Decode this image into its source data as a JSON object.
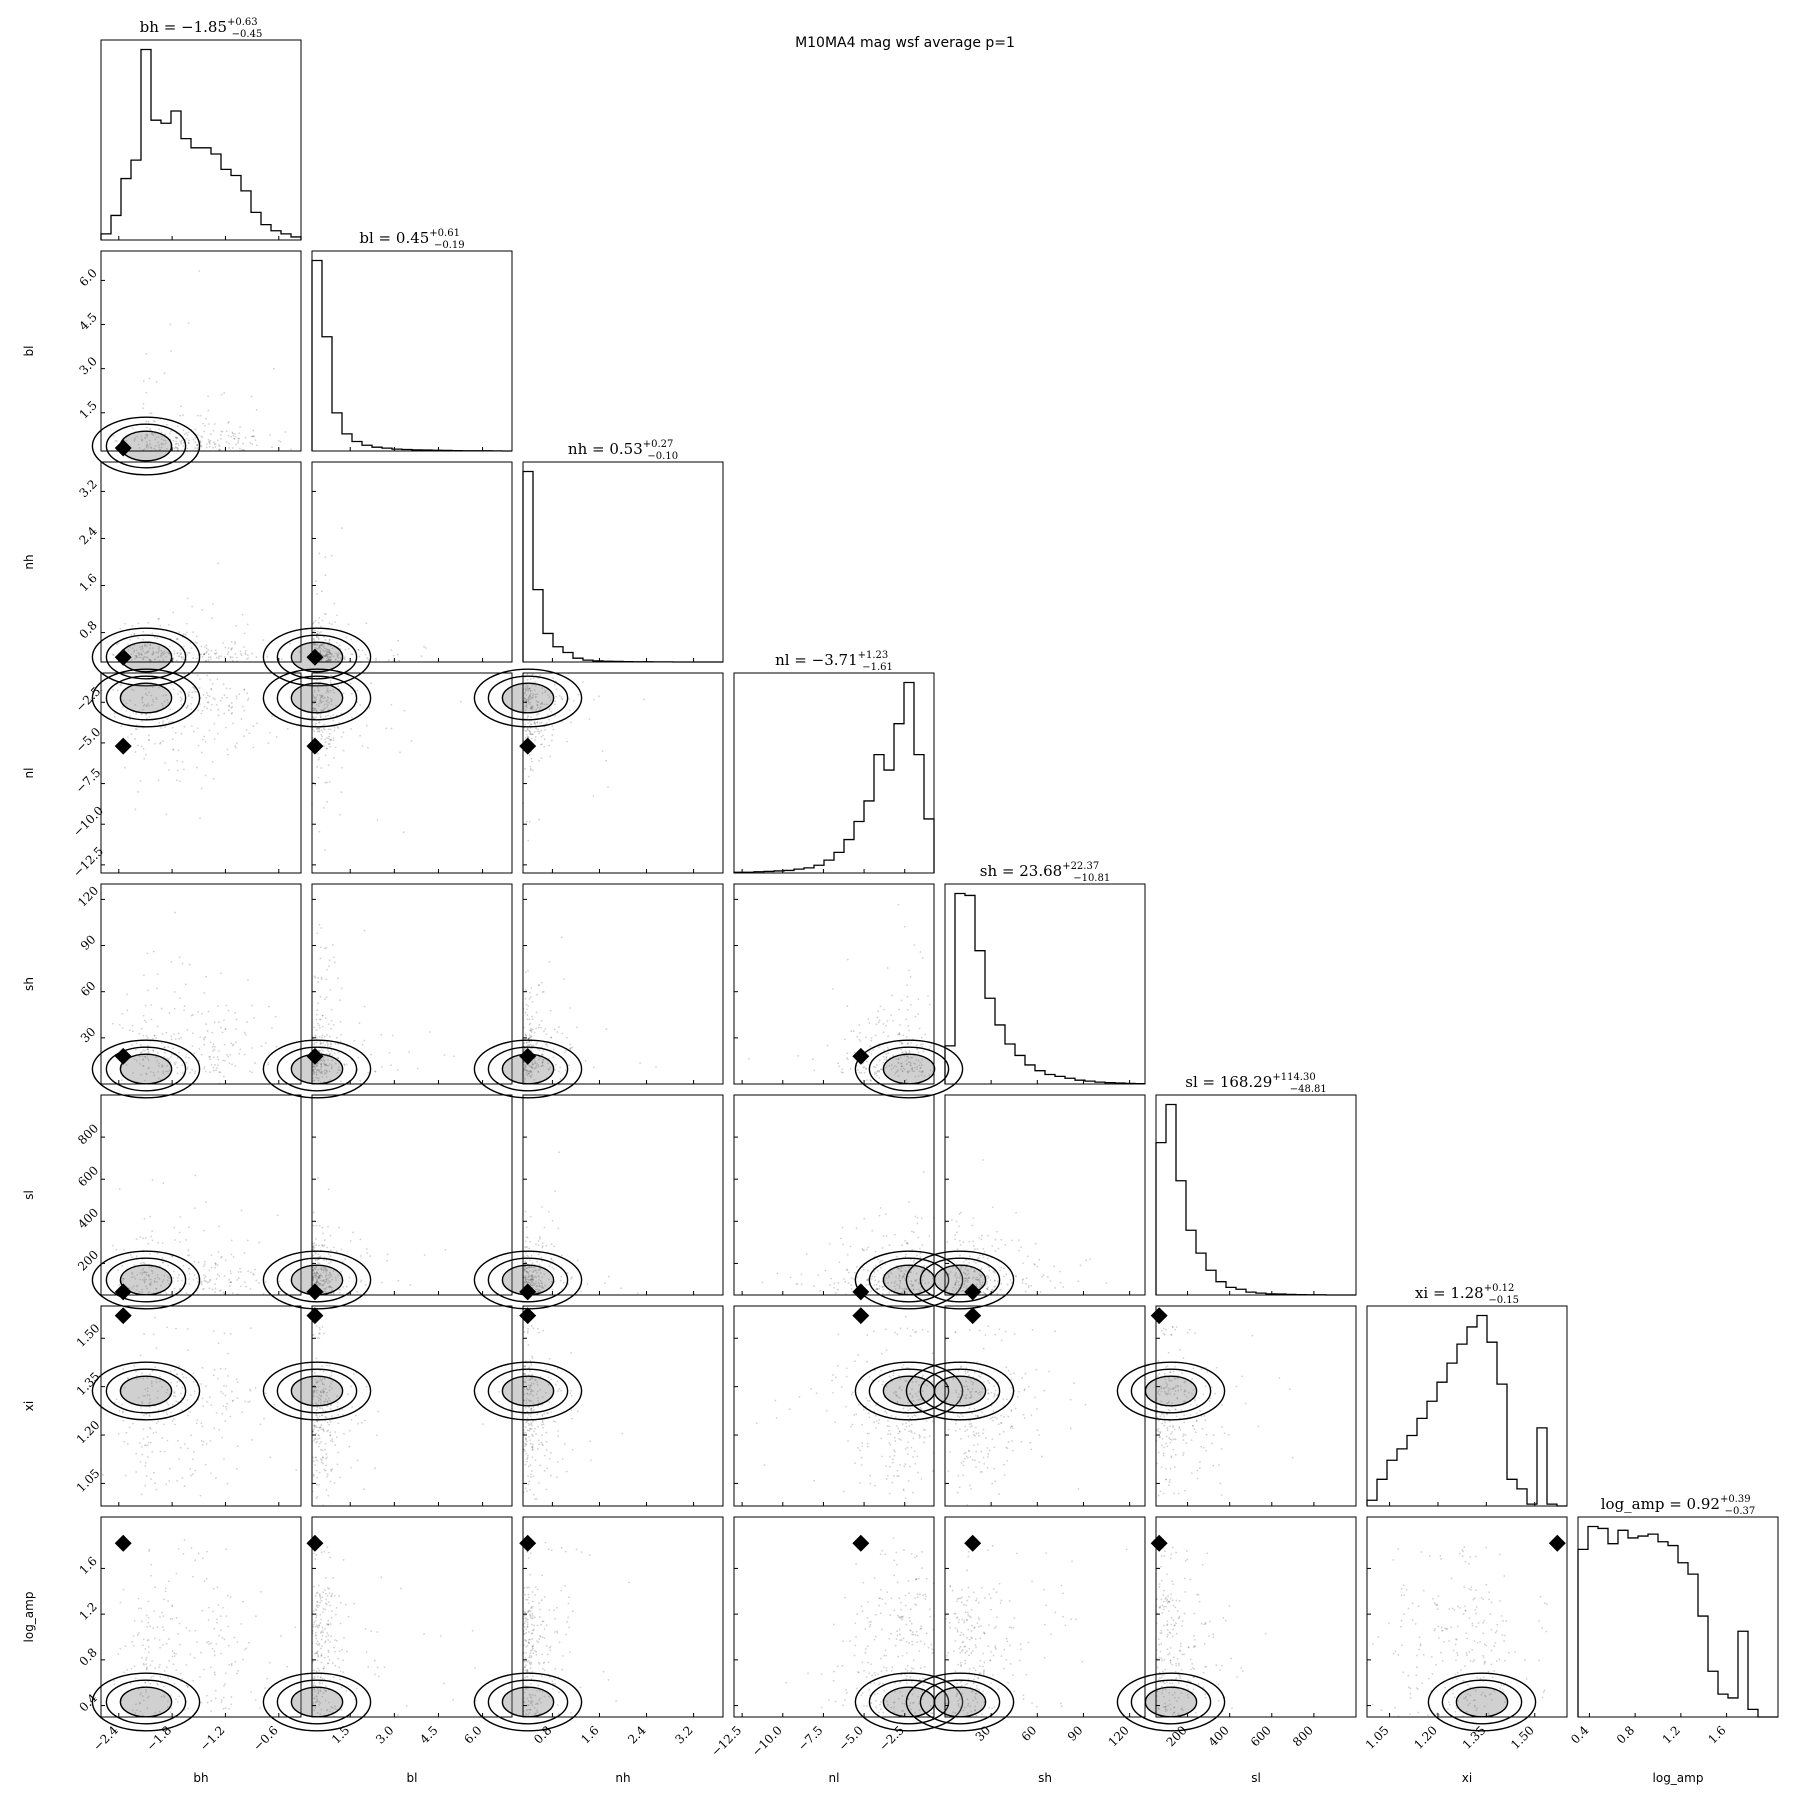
{
  "chart_data": {
    "type": "corner",
    "title": "M10MA4 mag wsf average p=1",
    "variables": [
      {
        "key": "bh",
        "label": "bh",
        "title": {
          "name": "bh",
          "value": "−1.85",
          "plus": "+0.63",
          "minus": "−0.45"
        },
        "range": [
          -2.6,
          -0.35
        ],
        "ticks": [
          -2.4,
          -1.8,
          -1.2,
          -0.6
        ],
        "tick_labels": [
          "−2.4",
          "−1.8",
          "−1.2",
          "−0.6"
        ],
        "hist": [
          2,
          8,
          20,
          26,
          62,
          39,
          38,
          42,
          33,
          30,
          30,
          28,
          23,
          21,
          16,
          9,
          5,
          3,
          2,
          1
        ]
      },
      {
        "key": "bl",
        "label": "bl",
        "title": {
          "name": "bl",
          "value": "0.45",
          "plus": "+0.61",
          "minus": "−0.19"
        },
        "range": [
          0.2,
          7.0
        ],
        "ticks": [
          1.5,
          3.0,
          4.5,
          6.0
        ],
        "tick_labels": [
          "1.5",
          "3.0",
          "4.5",
          "6.0"
        ],
        "hist": [
          100,
          60,
          20,
          9,
          5,
          3,
          2,
          1.5,
          1,
          0.8,
          0.6,
          0.5,
          0.4,
          0.3,
          0.2,
          0.15,
          0.1,
          0.1,
          0.05,
          0
        ]
      },
      {
        "key": "nh",
        "label": "nh",
        "title": {
          "name": "nh",
          "value": "0.53",
          "plus": "+0.27",
          "minus": "−0.10"
        },
        "range": [
          0.3,
          3.7
        ],
        "ticks": [
          0.8,
          1.6,
          2.4,
          3.2
        ],
        "tick_labels": [
          "0.8",
          "1.6",
          "2.4",
          "3.2"
        ],
        "hist": [
          100,
          38,
          15,
          8,
          5,
          2,
          1,
          0.6,
          0.4,
          0.3,
          0.2,
          0.1,
          0.1,
          0.05,
          0.05,
          0,
          0,
          0,
          0,
          0
        ]
      },
      {
        "key": "nl",
        "label": "nl",
        "title": {
          "name": "nl",
          "value": "−3.71",
          "plus": "+1.23",
          "minus": "−1.61"
        },
        "range": [
          -13.0,
          -0.7
        ],
        "ticks": [
          -12.5,
          -10.0,
          -7.5,
          -5.0,
          -2.5
        ],
        "tick_labels": [
          "−12.5",
          "−10.0",
          "−7.5",
          "−5.0",
          "−2.5"
        ],
        "hist": [
          0.3,
          0.3,
          0.5,
          0.6,
          0.8,
          1,
          1.5,
          2,
          3,
          5,
          8,
          13,
          20,
          28,
          46,
          40,
          58,
          74,
          46,
          21
        ]
      },
      {
        "key": "sh",
        "label": "sh",
        "title": {
          "name": "sh",
          "value": "23.68",
          "plus": "+22.37",
          "minus": "−10.81"
        },
        "range": [
          0,
          130
        ],
        "ticks": [
          30,
          60,
          90,
          120
        ],
        "tick_labels": [
          "30",
          "60",
          "90",
          "120"
        ],
        "hist": [
          20,
          100,
          99,
          70,
          45,
          31,
          21,
          15,
          10,
          7,
          5,
          4,
          3,
          2,
          1.5,
          1,
          0.7,
          0.5,
          0.3,
          0.2
        ]
      },
      {
        "key": "sl",
        "label": "sl",
        "title": {
          "name": "sl",
          "value": "168.29",
          "plus": "+114.30",
          "minus": "−48.81"
        },
        "range": [
          50,
          1000
        ],
        "ticks": [
          200,
          400,
          600,
          800
        ],
        "tick_labels": [
          "200",
          "400",
          "600",
          "800"
        ],
        "hist": [
          80,
          100,
          60,
          34,
          22,
          13,
          7,
          4,
          3,
          1.5,
          1,
          0.6,
          0.5,
          0.3,
          0.2,
          0.1,
          0.1,
          0,
          0,
          0
        ]
      },
      {
        "key": "xi",
        "label": "xi",
        "title": {
          "name": "xi",
          "value": "1.28",
          "plus": "+0.12",
          "minus": "−0.15"
        },
        "range": [
          0.98,
          1.6
        ],
        "ticks": [
          1.05,
          1.2,
          1.35,
          1.5
        ],
        "tick_labels": [
          "1.05",
          "1.20",
          "1.35",
          "1.50"
        ],
        "hist": [
          3,
          14,
          24,
          30,
          37,
          46,
          55,
          65,
          75,
          85,
          94,
          100,
          86,
          64,
          14,
          9,
          1,
          41,
          1,
          0
        ]
      },
      {
        "key": "log_amp",
        "label": "log_amp",
        "title": {
          "name": "log_amp",
          "value": "0.92",
          "plus": "+0.39",
          "minus": "−0.37"
        },
        "range": [
          0.3,
          2.05
        ],
        "ticks": [
          0.4,
          0.8,
          1.2,
          1.6
        ],
        "tick_labels": [
          "0.4",
          "0.8",
          "1.2",
          "1.6"
        ],
        "hist": [
          88,
          100,
          99,
          91,
          98,
          94,
          95,
          96,
          92,
          90,
          81,
          75,
          53,
          24,
          12,
          10,
          45,
          4,
          0,
          0
        ]
      }
    ],
    "truth": {
      "bh": -2.35,
      "bl": 0.3,
      "nh": 0.38,
      "nl": -5.2,
      "sh": 18,
      "sl": 65,
      "xi": 1.57,
      "log_amp": 1.82
    }
  }
}
